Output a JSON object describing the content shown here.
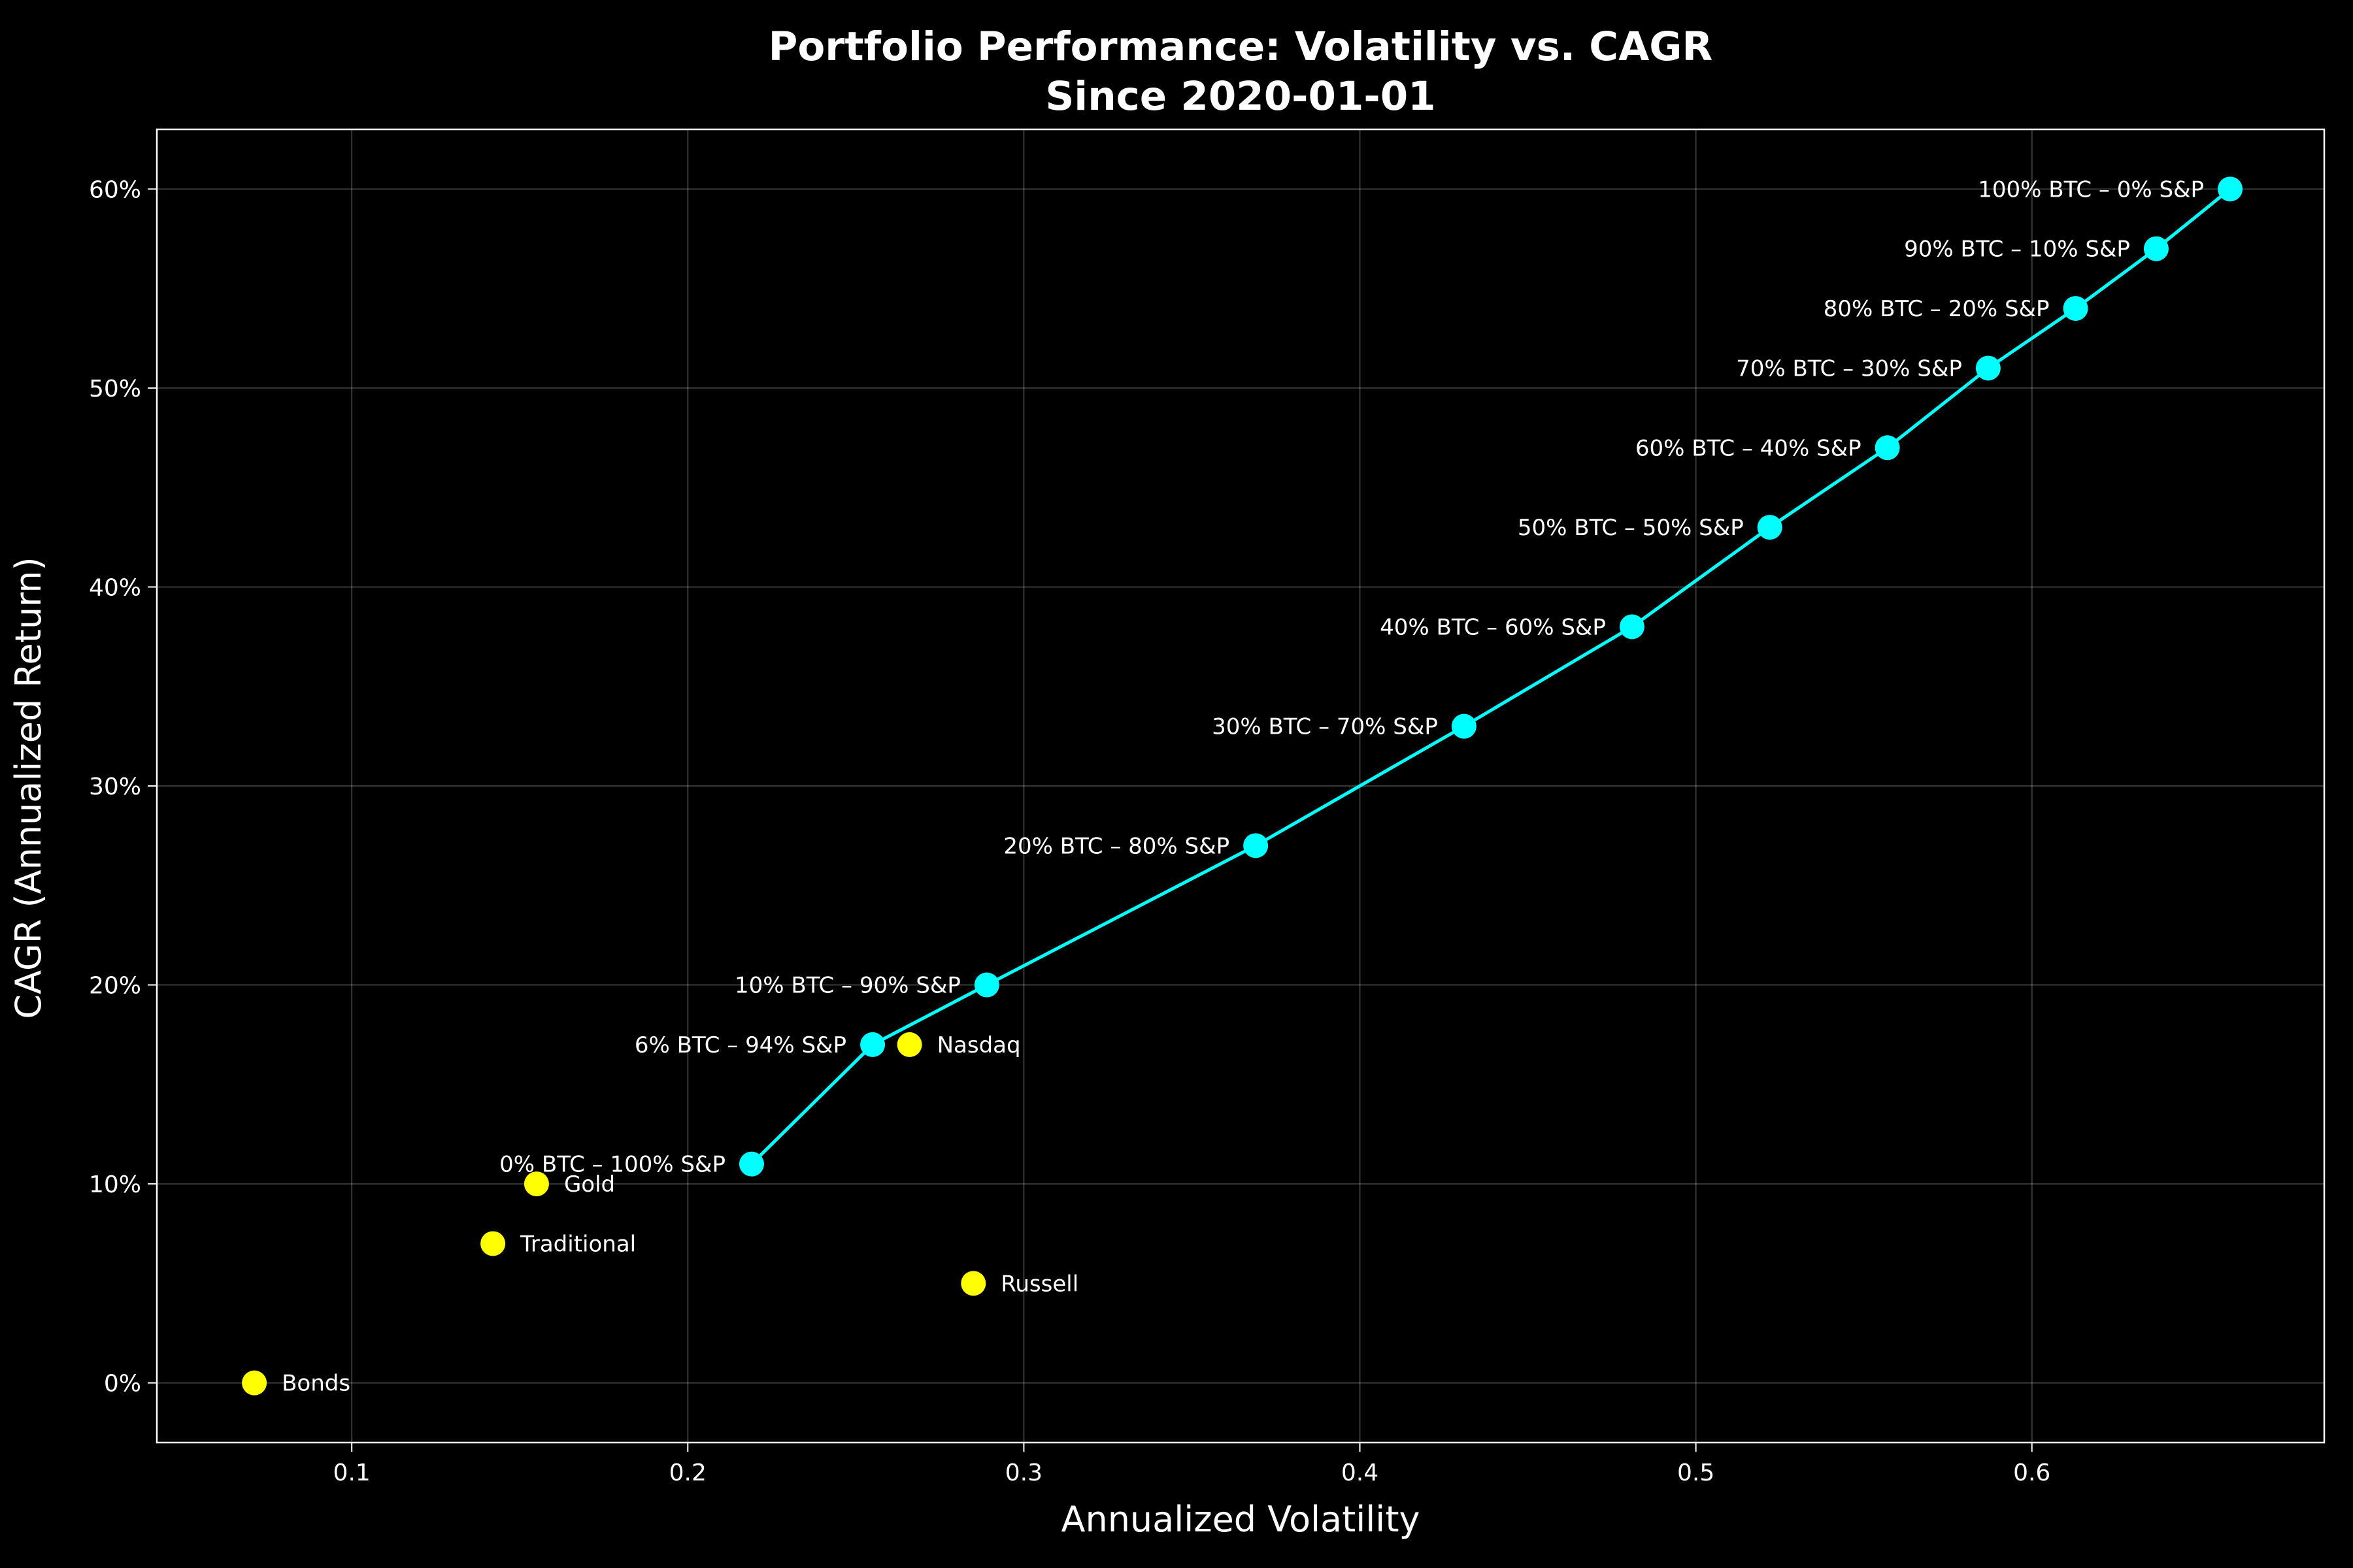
{
  "chart_data": {
    "type": "scatter",
    "title": "Portfolio Performance: Volatility vs. CAGR",
    "subtitle": "Since 2020-01-01",
    "xlabel": "Annualized Volatility",
    "ylabel": "CAGR (Annualized Return)",
    "xlim": [
      0.042,
      0.687
    ],
    "ylim": [
      -0.03,
      0.63
    ],
    "x_ticks": [
      {
        "value": 0.1,
        "label": "0.1"
      },
      {
        "value": 0.2,
        "label": "0.2"
      },
      {
        "value": 0.3,
        "label": "0.3"
      },
      {
        "value": 0.4,
        "label": "0.4"
      },
      {
        "value": 0.5,
        "label": "0.5"
      },
      {
        "value": 0.6,
        "label": "0.6"
      }
    ],
    "y_ticks": [
      {
        "value": 0.0,
        "label": "0%"
      },
      {
        "value": 0.1,
        "label": "10%"
      },
      {
        "value": 0.2,
        "label": "20%"
      },
      {
        "value": 0.3,
        "label": "30%"
      },
      {
        "value": 0.4,
        "label": "40%"
      },
      {
        "value": 0.5,
        "label": "50%"
      },
      {
        "value": 0.6,
        "label": "60%"
      }
    ],
    "grid": true,
    "series": [
      {
        "style": "line-with-markers",
        "color": "#00ffff",
        "label_position": "left",
        "points": [
          {
            "x": 0.219,
            "y": 0.11,
            "label": "0% BTC – 100% S&P"
          },
          {
            "x": 0.255,
            "y": 0.17,
            "label": "6% BTC – 94% S&P"
          },
          {
            "x": 0.289,
            "y": 0.2,
            "label": "10% BTC – 90% S&P"
          },
          {
            "x": 0.369,
            "y": 0.27,
            "label": "20% BTC – 80% S&P"
          },
          {
            "x": 0.431,
            "y": 0.33,
            "label": "30% BTC – 70% S&P"
          },
          {
            "x": 0.481,
            "y": 0.38,
            "label": "40% BTC – 60% S&P"
          },
          {
            "x": 0.522,
            "y": 0.43,
            "label": "50% BTC – 50% S&P"
          },
          {
            "x": 0.557,
            "y": 0.47,
            "label": "60% BTC – 40% S&P"
          },
          {
            "x": 0.587,
            "y": 0.51,
            "label": "70% BTC – 30% S&P"
          },
          {
            "x": 0.613,
            "y": 0.54,
            "label": "80% BTC – 20% S&P"
          },
          {
            "x": 0.637,
            "y": 0.57,
            "label": "90% BTC – 10% S&P"
          },
          {
            "x": 0.659,
            "y": 0.6,
            "label": "100% BTC – 0% S&P"
          }
        ]
      },
      {
        "style": "markers",
        "color": "#ffff00",
        "label_position": "right",
        "points": [
          {
            "x": 0.071,
            "y": 0.0,
            "label": "Bonds"
          },
          {
            "x": 0.142,
            "y": 0.07,
            "label": "Traditional"
          },
          {
            "x": 0.155,
            "y": 0.1,
            "label": "Gold"
          },
          {
            "x": 0.266,
            "y": 0.17,
            "label": "Nasdaq"
          },
          {
            "x": 0.285,
            "y": 0.05,
            "label": "Russell"
          }
        ]
      }
    ],
    "colors": {
      "background": "#000000",
      "foreground": "#ffffff"
    }
  }
}
